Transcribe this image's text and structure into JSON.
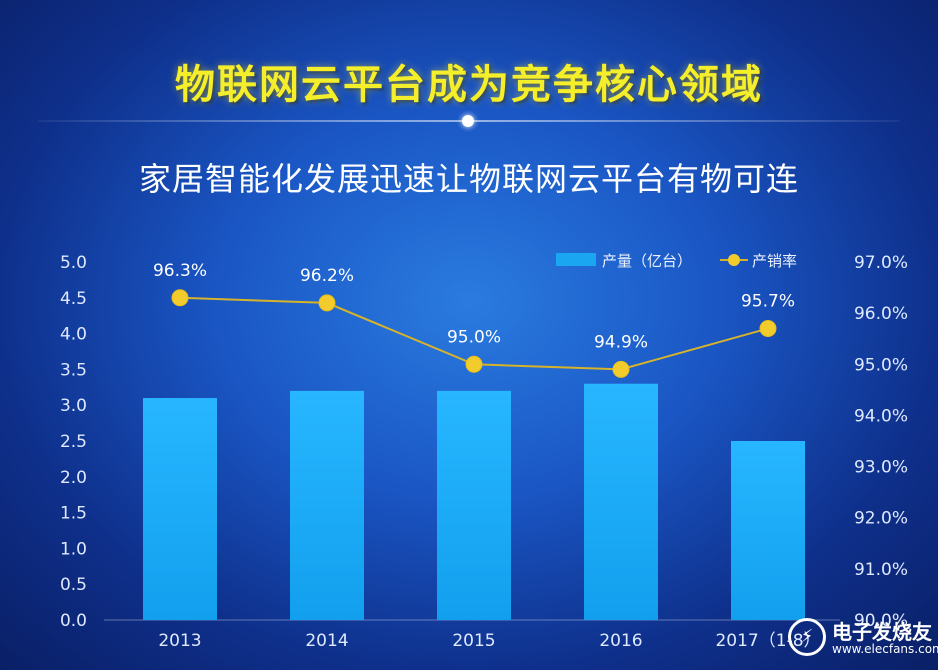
{
  "title": "物联网云平台成为竞争核心领域",
  "subtitle": "家居智能化发展迅速让物联网云平台有物可连",
  "colors": {
    "bar": "#1aa6f0",
    "line": "#d6b32a",
    "dot": "#f2cc2c",
    "title": "#f5ee2a"
  },
  "watermark": {
    "logo_icon": "electronic-enthusiast-logo-icon",
    "text": "电子发烧友",
    "url": "www.elecfans.com"
  },
  "chart_data": {
    "type": "bar",
    "categories": [
      "2013",
      "2014",
      "2015",
      "2016",
      "2017（1-8）"
    ],
    "series": [
      {
        "name": "产量（亿台）",
        "type": "bar",
        "axis": "left",
        "values": [
          3.1,
          3.2,
          3.2,
          3.3,
          2.5
        ]
      },
      {
        "name": "产销率",
        "type": "line",
        "axis": "right",
        "values": [
          96.3,
          96.2,
          95.0,
          94.9,
          95.7
        ],
        "labels": [
          "96.3%",
          "96.2%",
          "95.0%",
          "94.9%",
          "95.7%"
        ]
      }
    ],
    "y_left": {
      "min": 0,
      "max": 5,
      "step": 0.5,
      "ticks": [
        "0.0",
        "0.5",
        "1.0",
        "1.5",
        "2.0",
        "2.5",
        "3.0",
        "3.5",
        "4.0",
        "4.5",
        "5.0"
      ]
    },
    "y_right": {
      "min": 90,
      "max": 97,
      "step": 1,
      "ticks": [
        "90.0%",
        "91.0%",
        "92.0%",
        "93.0%",
        "94.0%",
        "95.0%",
        "96.0%",
        "97.0%"
      ]
    },
    "legend_position": "top-right",
    "grid": false
  }
}
